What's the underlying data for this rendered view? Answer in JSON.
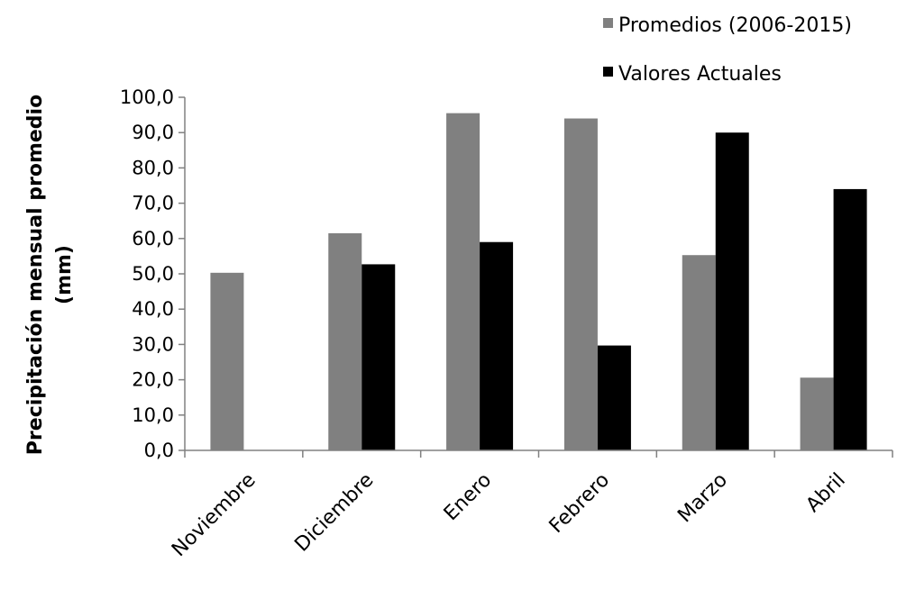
{
  "chart_data": {
    "type": "bar",
    "title": "",
    "xlabel": "",
    "ylabel_line1": "Precipitación mensual promedio",
    "ylabel_line2": "(mm)",
    "ylim": [
      0,
      100
    ],
    "ytick_step": 10,
    "ytick_labels": [
      "0,0",
      "10,0",
      "20,0",
      "30,0",
      "40,0",
      "50,0",
      "60,0",
      "70,0",
      "80,0",
      "90,0",
      "100,0"
    ],
    "categories": [
      "Noviembre",
      "Diciembre",
      "Enero",
      "Febrero",
      "Marzo",
      "Abril"
    ],
    "series": [
      {
        "name": "Promedios (2006-2015)",
        "color": "#808080",
        "values": [
          50.3,
          61.5,
          95.5,
          94.0,
          55.3,
          20.6
        ]
      },
      {
        "name": "Valores Actuales",
        "color": "#000000",
        "values": [
          null,
          52.7,
          59.0,
          29.7,
          90.0,
          74.0
        ]
      }
    ],
    "grid": false,
    "legend_position": "top-right"
  }
}
